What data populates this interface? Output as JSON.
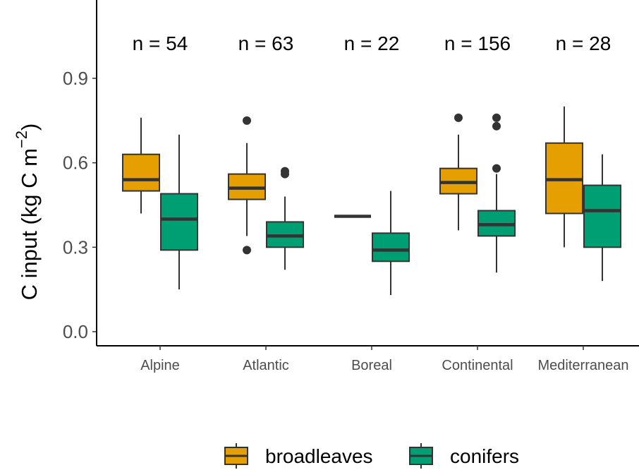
{
  "chart_data": {
    "type": "boxplot",
    "ylabel": "C input (kg C m",
    "ylabel_exponent": "−2",
    "ylabel_close": ")",
    "ylim": [
      0,
      1.15
    ],
    "yticks": [
      0.0,
      0.3,
      0.6,
      0.9
    ],
    "ytick_labels": [
      "0.0",
      "0.3",
      "0.6",
      "0.9"
    ],
    "grid": false,
    "legend_position": "bottom",
    "categories": [
      "Alpine",
      "Atlantic",
      "Boreal",
      "Continental",
      "Mediterranean"
    ],
    "annotations": [
      "n =  54",
      "n =  63",
      "n =  22",
      "n =  156",
      "n =  28"
    ],
    "series": [
      {
        "name": "broadleaves",
        "color": "#E69F00",
        "boxes": [
          {
            "whisker_low": 0.42,
            "q1": 0.5,
            "median": 0.54,
            "q3": 0.63,
            "whisker_high": 0.76,
            "outliers": []
          },
          {
            "whisker_low": 0.34,
            "q1": 0.47,
            "median": 0.51,
            "q3": 0.56,
            "whisker_high": 0.67,
            "outliers": [
              0.29,
              0.75
            ]
          },
          {
            "whisker_low": 0.41,
            "q1": 0.41,
            "median": 0.41,
            "q3": 0.41,
            "whisker_high": 0.41,
            "outliers": []
          },
          {
            "whisker_low": 0.36,
            "q1": 0.49,
            "median": 0.53,
            "q3": 0.58,
            "whisker_high": 0.7,
            "outliers": [
              0.76
            ]
          },
          {
            "whisker_low": 0.3,
            "q1": 0.42,
            "median": 0.54,
            "q3": 0.67,
            "whisker_high": 0.8,
            "outliers": []
          }
        ]
      },
      {
        "name": "conifers",
        "color": "#009E73",
        "boxes": [
          {
            "whisker_low": 0.15,
            "q1": 0.29,
            "median": 0.4,
            "q3": 0.49,
            "whisker_high": 0.7,
            "outliers": []
          },
          {
            "whisker_low": 0.22,
            "q1": 0.3,
            "median": 0.34,
            "q3": 0.39,
            "whisker_high": 0.48,
            "outliers": [
              0.56,
              0.57
            ]
          },
          {
            "whisker_low": 0.13,
            "q1": 0.25,
            "median": 0.29,
            "q3": 0.35,
            "whisker_high": 0.5,
            "outliers": []
          },
          {
            "whisker_low": 0.21,
            "q1": 0.34,
            "median": 0.38,
            "q3": 0.43,
            "whisker_high": 0.56,
            "outliers": [
              0.58,
              0.73,
              0.76
            ]
          },
          {
            "whisker_low": 0.18,
            "q1": 0.3,
            "median": 0.43,
            "q3": 0.52,
            "whisker_high": 0.63,
            "outliers": []
          }
        ]
      }
    ]
  }
}
